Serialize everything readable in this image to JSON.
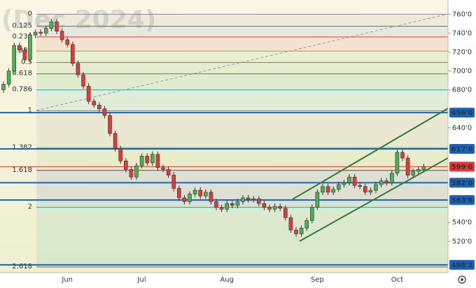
{
  "chart_data": {
    "type": "candlestick",
    "title": "(Dec 2024)",
    "categories": [
      null,
      null,
      null,
      null,
      null,
      null,
      null,
      null,
      null,
      null,
      null,
      null,
      "Jun",
      null,
      null,
      null,
      null,
      null,
      null,
      null,
      null,
      null,
      null,
      null,
      null,
      null,
      "Jul",
      null,
      null,
      null,
      null,
      null,
      null,
      null,
      null,
      null,
      null,
      null,
      null,
      null,
      null,
      null,
      "Aug",
      null,
      null,
      null,
      null,
      null,
      null,
      null,
      null,
      null,
      null,
      null,
      null,
      null,
      null,
      null,
      null,
      "Sep",
      null,
      null,
      null,
      null,
      null,
      null,
      null,
      null,
      null,
      null,
      null,
      null,
      null,
      null,
      "Oct",
      null,
      null,
      null,
      null,
      null
    ],
    "open": [
      680,
      686,
      700,
      727,
      722,
      712,
      738,
      741,
      740,
      745,
      752,
      742,
      733,
      728,
      708,
      696,
      684,
      668,
      664,
      660,
      653,
      634,
      618,
      605,
      596,
      588,
      600,
      610,
      603,
      612,
      598,
      596,
      590,
      576,
      566,
      562,
      570,
      574,
      568,
      572,
      562,
      556,
      554,
      560,
      558,
      562,
      566,
      564,
      565,
      560,
      556,
      554,
      557,
      555,
      545,
      532,
      528,
      534,
      542,
      556,
      572,
      578,
      572,
      575,
      580,
      582,
      588,
      579,
      578,
      572,
      574,
      580,
      584,
      582,
      592,
      614,
      608,
      590,
      594,
      596
    ],
    "high": [
      689,
      703,
      730,
      730,
      725,
      741,
      744,
      744,
      748,
      755,
      755,
      745,
      736,
      731,
      711,
      699,
      687,
      671,
      667,
      663,
      656,
      637,
      621,
      608,
      599,
      603,
      613,
      613,
      615,
      615,
      601,
      599,
      593,
      579,
      569,
      573,
      577,
      577,
      575,
      575,
      565,
      559,
      563,
      563,
      565,
      569,
      569,
      568,
      568,
      563,
      559,
      560,
      560,
      558,
      548,
      535,
      537,
      545,
      559,
      575,
      581,
      581,
      578,
      583,
      585,
      591,
      591,
      582,
      581,
      577,
      583,
      587,
      587,
      595,
      617,
      617,
      611,
      597,
      599,
      602
    ],
    "low": [
      677,
      683,
      697,
      719,
      709,
      709,
      735,
      737,
      737,
      742,
      739,
      730,
      725,
      705,
      693,
      681,
      665,
      661,
      657,
      650,
      631,
      615,
      602,
      593,
      585,
      585,
      597,
      600,
      600,
      595,
      593,
      587,
      573,
      563,
      559,
      559,
      567,
      565,
      565,
      559,
      553,
      551,
      551,
      555,
      555,
      559,
      561,
      561,
      557,
      553,
      551,
      551,
      552,
      542,
      529,
      525,
      525,
      531,
      539,
      553,
      569,
      569,
      569,
      572,
      577,
      579,
      576,
      575,
      569,
      569,
      571,
      577,
      579,
      579,
      589,
      605,
      587,
      587,
      591,
      593
    ],
    "close": [
      686,
      700,
      727,
      722,
      712,
      738,
      741,
      740,
      745,
      752,
      742,
      733,
      728,
      708,
      696,
      684,
      668,
      664,
      660,
      653,
      634,
      618,
      605,
      596,
      588,
      600,
      610,
      603,
      612,
      598,
      596,
      590,
      576,
      566,
      562,
      570,
      574,
      568,
      572,
      562,
      556,
      554,
      560,
      558,
      562,
      566,
      564,
      565,
      560,
      556,
      554,
      557,
      555,
      545,
      532,
      528,
      534,
      542,
      556,
      572,
      578,
      572,
      575,
      580,
      582,
      588,
      579,
      578,
      572,
      574,
      580,
      584,
      582,
      592,
      614,
      608,
      590,
      594,
      596,
      599
    ],
    "up_color": "#4caf50",
    "down_color": "#e53935",
    "ylim": [
      487,
      775
    ],
    "yticks": [
      {
        "value": 760,
        "label": "760'0"
      },
      {
        "value": 740,
        "label": "740'0"
      },
      {
        "value": 720,
        "label": "720'0"
      },
      {
        "value": 700,
        "label": "700'0"
      },
      {
        "value": 680,
        "label": "680'0"
      },
      {
        "value": 640,
        "label": "640'0"
      },
      {
        "value": 540,
        "label": "540'0"
      },
      {
        "value": 520,
        "label": "520'0"
      }
    ],
    "levels": [
      {
        "value": 656,
        "label": "656'0",
        "color": "#1565c0"
      },
      {
        "value": 617.75,
        "label": "617'6",
        "color": "#1565c0"
      },
      {
        "value": 599,
        "label": "599'0",
        "color": "#e53935"
      },
      {
        "value": 582,
        "label": "582'0",
        "color": "#1565c0"
      },
      {
        "value": 563.75,
        "label": "563'6",
        "color": "#1565c0"
      },
      {
        "value": 495.25,
        "label": "495'2",
        "color": "#1565c0"
      }
    ],
    "fib_levels": [
      {
        "level": 0,
        "price": 760,
        "color": "#888888"
      },
      {
        "level": 0.125,
        "price": 747.3,
        "color": "#5c6bc0"
      },
      {
        "level": 0.236,
        "price": 736,
        "color": "#e53935"
      },
      {
        "level": 0.382,
        "price": 721,
        "color": "#7cb342"
      },
      {
        "level": 0.5,
        "price": 709,
        "color": "#43a047"
      },
      {
        "level": 0.618,
        "price": 697,
        "color": "#2e9d3a"
      },
      {
        "level": 0.786,
        "price": 680,
        "color": "#26a6b0"
      },
      {
        "level": 1,
        "price": 658,
        "color": "#888888"
      },
      {
        "level": 1.382,
        "price": 619,
        "color": "#7cb342"
      },
      {
        "level": 1.618,
        "price": 595,
        "color": "#3949ab"
      },
      {
        "level": 2,
        "price": 556,
        "color": "#26a69a"
      },
      {
        "level": 2.618,
        "price": 493,
        "color": "#e53935"
      }
    ]
  }
}
